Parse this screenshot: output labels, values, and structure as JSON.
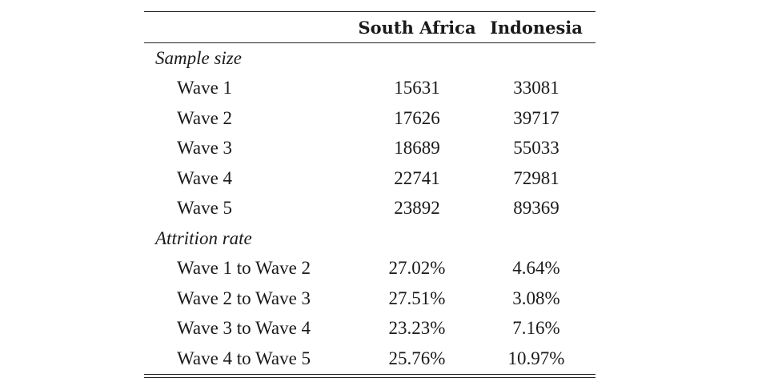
{
  "table": {
    "columns": [
      "",
      "South Africa",
      "Indonesia"
    ],
    "sections": [
      {
        "label": "Sample size",
        "rows": [
          {
            "label": "Wave 1",
            "south_africa": "15631",
            "indonesia": "33081"
          },
          {
            "label": "Wave 2",
            "south_africa": "17626",
            "indonesia": "39717"
          },
          {
            "label": "Wave 3",
            "south_africa": "18689",
            "indonesia": "55033"
          },
          {
            "label": "Wave 4",
            "south_africa": "22741",
            "indonesia": "72981"
          },
          {
            "label": "Wave 5",
            "south_africa": "23892",
            "indonesia": "89369"
          }
        ]
      },
      {
        "label": "Attrition rate",
        "rows": [
          {
            "label": "Wave 1 to Wave 2",
            "south_africa": "27.02%",
            "indonesia": "4.64%"
          },
          {
            "label": "Wave 2 to Wave 3",
            "south_africa": "27.51%",
            "indonesia": "3.08%"
          },
          {
            "label": "Wave 3 to Wave 4",
            "south_africa": "23.23%",
            "indonesia": "7.16%"
          },
          {
            "label": "Wave 4 to Wave 5",
            "south_africa": "25.76%",
            "indonesia": "10.97%"
          }
        ]
      }
    ]
  }
}
